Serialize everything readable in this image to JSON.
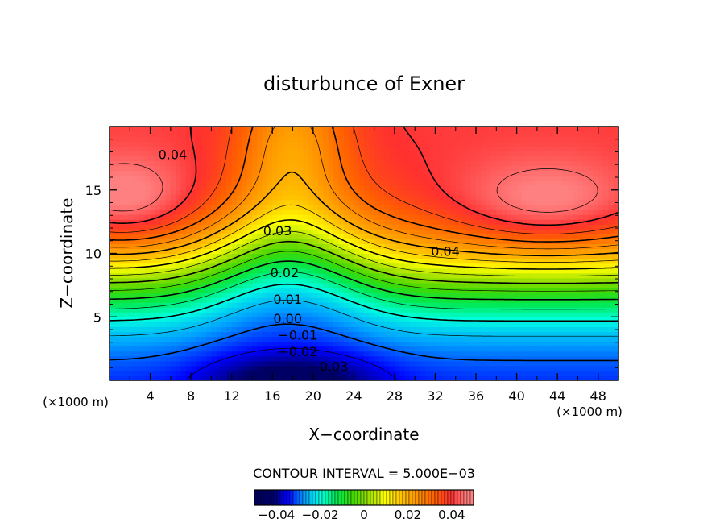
{
  "chart_data": {
    "type": "contour",
    "title": "disturbunce of Exner",
    "xlabel": "X−coordinate",
    "ylabel": "Z−coordinate",
    "x_unit_label": "(×1000 m)",
    "y_unit_label": "(×1000 m)",
    "xlim": [
      0,
      50
    ],
    "ylim": [
      0,
      20
    ],
    "xticks": [
      4,
      8,
      12,
      16,
      20,
      24,
      28,
      32,
      36,
      40,
      44,
      48
    ],
    "xtick_labels": [
      "4",
      "8",
      "12",
      "16",
      "20",
      "24",
      "28",
      "32",
      "36",
      "40",
      "44",
      "48"
    ],
    "yticks": [
      5,
      10,
      15
    ],
    "ytick_labels": [
      "5",
      "10",
      "15"
    ],
    "contour_interval_text": "CONTOUR INTERVAL = 5.000E−03",
    "contour_interval": 0.005,
    "contour_levels": [
      -0.035,
      -0.03,
      -0.025,
      -0.02,
      -0.015,
      -0.01,
      -0.005,
      0.0,
      0.005,
      0.01,
      0.015,
      0.02,
      0.025,
      0.03,
      0.035,
      0.04,
      0.045
    ],
    "contour_labels": [
      {
        "text": "0.04",
        "x": 6.2,
        "z": 17.8
      },
      {
        "text": "0.03",
        "x": 16.5,
        "z": 11.8
      },
      {
        "text": "0.04",
        "x": 33.0,
        "z": 10.2
      },
      {
        "text": "0.02",
        "x": 17.2,
        "z": 8.5
      },
      {
        "text": "0.01",
        "x": 17.5,
        "z": 6.4
      },
      {
        "text": "0.00",
        "x": 17.5,
        "z": 4.9
      },
      {
        "text": "−0.01",
        "x": 18.5,
        "z": 3.6
      },
      {
        "text": "−0.02",
        "x": 18.5,
        "z": 2.3
      },
      {
        "text": "−0.03",
        "x": 21.5,
        "z": 1.1
      }
    ],
    "field_range": [
      -0.042,
      0.047
    ],
    "negative_contours": "dashed",
    "colorbar": {
      "range": [
        -0.05,
        0.05
      ],
      "ticks": [
        -0.04,
        -0.02,
        0,
        0.02,
        0.04
      ],
      "tick_labels": [
        "−0.04",
        "−0.02",
        "0",
        "0.02",
        "0.04"
      ]
    },
    "grid": false,
    "legend": "colorbar-bottom",
    "colormap": [
      "#000064",
      "#0000ff",
      "#00a0ff",
      "#00ffe0",
      "#00e850",
      "#40d800",
      "#a0e000",
      "#ffff00",
      "#ffc000",
      "#ff9000",
      "#ff6000",
      "#ff3030",
      "#ff8080"
    ]
  }
}
